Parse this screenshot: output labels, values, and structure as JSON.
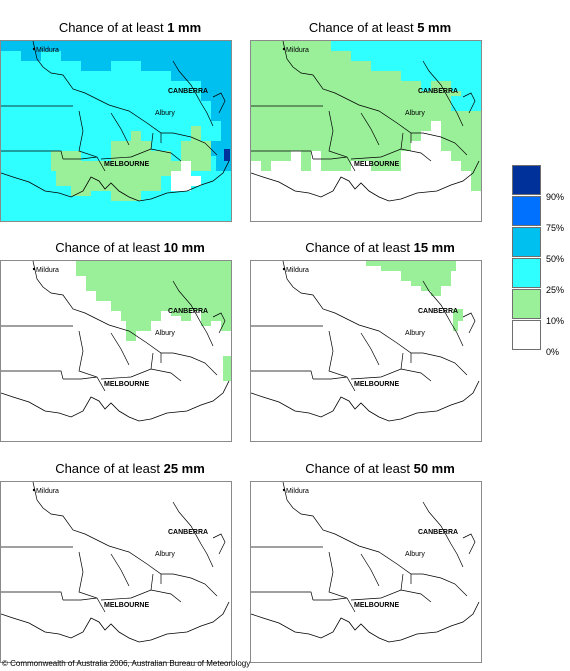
{
  "panels": [
    {
      "title_prefix": "Chance of at least ",
      "title_value": "1 mm"
    },
    {
      "title_prefix": "Chance of at least ",
      "title_value": "5 mm"
    },
    {
      "title_prefix": "Chance of at least ",
      "title_value": "10 mm"
    },
    {
      "title_prefix": "Chance of at least ",
      "title_value": "15 mm"
    },
    {
      "title_prefix": "Chance of at least ",
      "title_value": "25 mm"
    },
    {
      "title_prefix": "Chance of at least ",
      "title_value": "50 mm"
    }
  ],
  "places": {
    "mildura": "Mildura",
    "canberra": "CANBERRA",
    "albury": "Albury",
    "melbourne": "MELBOURNE"
  },
  "legend": {
    "labels": [
      "90%",
      "75%",
      "50%",
      "25%",
      "10%",
      "0%"
    ],
    "colors": [
      "#00309a",
      "#0070ff",
      "#00c0f0",
      "#30ffff",
      "#99f099",
      "#ffffff"
    ]
  },
  "copyright": "© Commonwealth of Australia 2006, Australian Bureau of Meteorology"
}
